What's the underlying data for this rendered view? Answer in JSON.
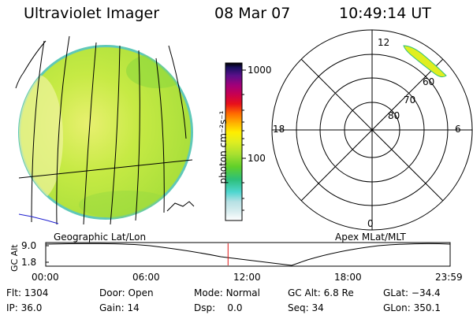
{
  "header": {
    "instrument": "Ultraviolet Imager",
    "date": "08 Mar 07",
    "time": "10:49:14 UT"
  },
  "colorbar": {
    "unit_label": "photon cm⁻²s⁻¹",
    "tick_labels": [
      "1000",
      "100"
    ],
    "tick_values": [
      1000,
      100
    ],
    "scale": "log",
    "colors": [
      "#ffffff",
      "#cfe8ea",
      "#4fd6d0",
      "#2dbf7a",
      "#5fd02a",
      "#a8e030",
      "#e0ee20",
      "#ffee00",
      "#ffb000",
      "#ff6a00",
      "#e8101a",
      "#c80050",
      "#a0007a",
      "#5a108a",
      "#1a1060",
      "#000000"
    ]
  },
  "image_panel": {
    "caption": "Geographic Lat/Lon",
    "disk_color": "#b9e63a",
    "edge_color": "#59c8b8",
    "coast_color": "#2020d0"
  },
  "polar_panel": {
    "caption": "Apex MLat/MLT",
    "mlt_labels": {
      "top": "12",
      "left": "18",
      "right": "6",
      "bottom": "0"
    },
    "mlat_labels": [
      "60",
      "70",
      "80"
    ],
    "aurora_color": "#e0ee20"
  },
  "altitude_plot": {
    "ylabel": "GC Alt",
    "yticks": [
      "9.0",
      "1.8"
    ],
    "xticks": [
      "00:00",
      "06:00",
      "12:00",
      "18:00",
      "23:59"
    ],
    "current_time_marker_hours": 10.82,
    "marker_color": "#e01010"
  },
  "info": {
    "flt_label": "Flt:",
    "flt": "1304",
    "ip_label": "IP:",
    "ip": "36.0",
    "door_label": "Door:",
    "door": "Open",
    "gain_label": "Gain:",
    "gain": "14",
    "mode_label": "Mode:",
    "mode": "Normal",
    "dsp_label": "Dsp:",
    "dsp": "0.0",
    "gcalt_label": "GC Alt:",
    "gcalt": "6.8 Re",
    "seq_label": "Seq:",
    "seq": "34",
    "glat_label": "GLat:",
    "glat": "−34.4",
    "glon_label": "GLon:",
    "glon": "350.1"
  }
}
